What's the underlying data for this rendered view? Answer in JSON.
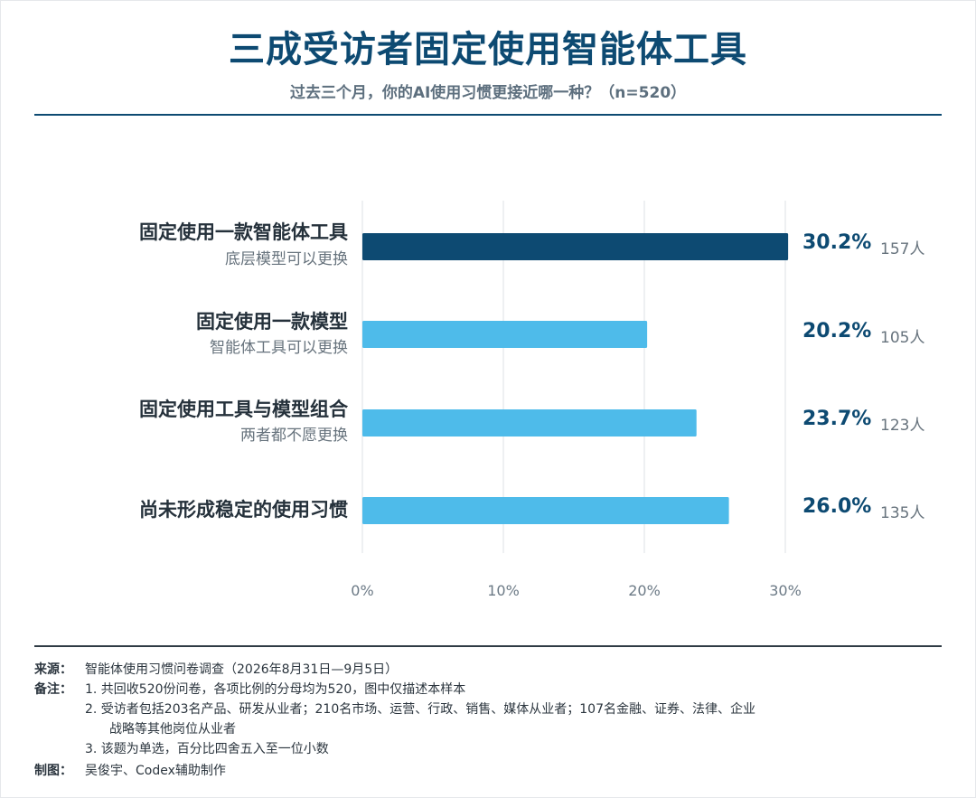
{
  "header": {
    "title": "三成受访者固定使用智能体工具",
    "subtitle": "过去三个月，你的AI使用习惯更接近哪一种？（n=520）"
  },
  "chart_data": {
    "type": "bar",
    "orientation": "horizontal",
    "categories": [
      {
        "label": "固定使用一款智能体工具",
        "sublabel": "底层模型可以更换"
      },
      {
        "label": "固定使用一款模型",
        "sublabel": "智能体工具可以更换"
      },
      {
        "label": "固定使用工具与模型组合",
        "sublabel": "两者都不愿更换"
      },
      {
        "label": "尚未形成稳定的使用习惯",
        "sublabel": ""
      }
    ],
    "values": [
      30.2,
      20.2,
      23.7,
      26.0
    ],
    "value_labels": [
      "30.2%",
      "20.2%",
      "23.7%",
      "26.0%"
    ],
    "counts": [
      "157人",
      "105人",
      "123人",
      "135人"
    ],
    "highlight_index": 0,
    "xlim": [
      0,
      30
    ],
    "xticks": [
      0,
      10,
      20,
      30
    ],
    "xtick_labels": [
      "0%",
      "10%",
      "20%",
      "30%"
    ],
    "grid": true,
    "colors": {
      "highlight": "#0d4a72",
      "default": "#4ebbea",
      "grid": "#e3e7ea"
    }
  },
  "footer": {
    "source_label": "来源：",
    "source_text": "智能体使用习惯问卷调查（2026年8月31日—9月5日）",
    "notes_label": "备注：",
    "notes": [
      "1.   共回收520份问卷，各项比例的分母均为520，图中仅描述本样本",
      "2.   受访者包括203名产品、研发从业者；210名市场、运营、行政、销售、媒体从业者；107名金融、证券、法律、企业",
      "战略等其他岗位从业者",
      "3.   该题为单选，百分比四舍五入至一位小数"
    ],
    "credit_label": "制图：",
    "credit_text": "吴俊宇、Codex辅助制作"
  }
}
